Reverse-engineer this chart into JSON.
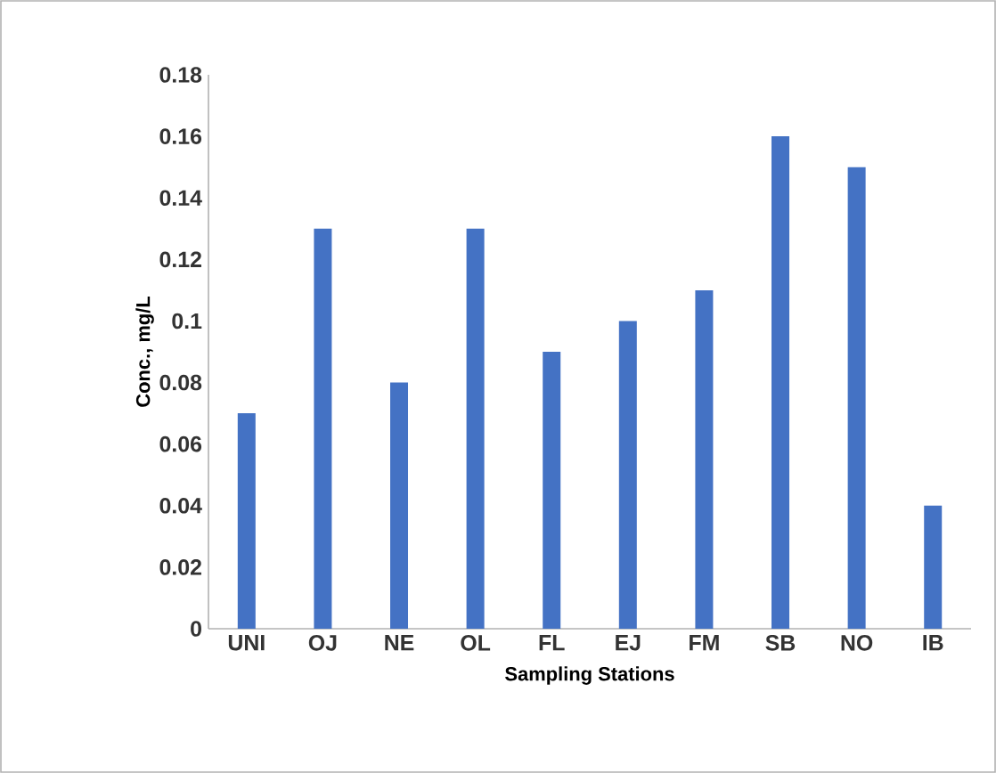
{
  "chart_data": {
    "type": "bar",
    "xlabel": "Sampling Stations",
    "ylabel": "Conc., mg/L",
    "categories": [
      "UNI",
      "OJ",
      "NE",
      "OL",
      "FL",
      "EJ",
      "FM",
      "SB",
      "NO",
      "IB"
    ],
    "values": [
      0.07,
      0.13,
      0.08,
      0.13,
      0.09,
      0.1,
      0.11,
      0.16,
      0.15,
      0.04
    ],
    "color": "#4472c4",
    "ylim": [
      0,
      0.18
    ],
    "yticks": [
      0,
      0.02,
      0.04,
      0.06,
      0.08,
      0.1,
      0.12,
      0.14,
      0.16,
      0.18
    ]
  }
}
